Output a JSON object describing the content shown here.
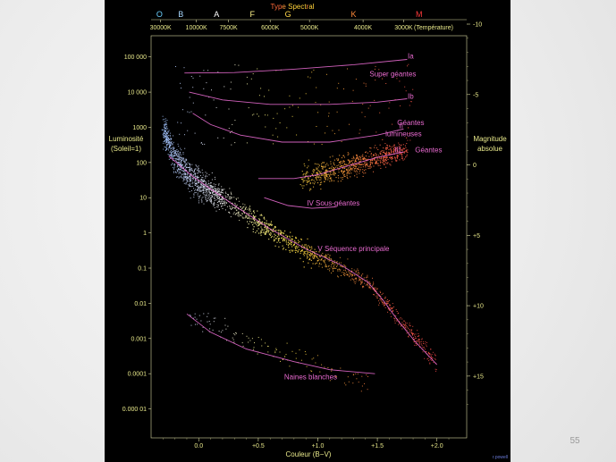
{
  "slide": {
    "number": "55"
  },
  "chart_data": {
    "type": "scatter",
    "title_parts": [
      {
        "text": "Typ",
        "color": "#ff6a3a"
      },
      {
        "text": "e",
        "color": "#ff9a3a"
      },
      {
        "text": " ",
        "color": "#ffffff"
      },
      {
        "text": "Spect",
        "color": "#ffd23a"
      },
      {
        "text": "r",
        "color": "#ff8a3a"
      },
      {
        "text": "al",
        "color": "#ffd23a"
      }
    ],
    "spectral_classes": [
      {
        "label": "O",
        "bv": -0.33,
        "color": "#6ad0ff"
      },
      {
        "label": "B",
        "bv": -0.15,
        "color": "#a8d8ff"
      },
      {
        "label": "A",
        "bv": 0.15,
        "color": "#ffffff"
      },
      {
        "label": "F",
        "bv": 0.45,
        "color": "#fff38a"
      },
      {
        "label": "G",
        "bv": 0.75,
        "color": "#ffd84a"
      },
      {
        "label": "K",
        "bv": 1.3,
        "color": "#ff8a3a"
      },
      {
        "label": "M",
        "bv": 1.85,
        "color": "#ff3a3a"
      }
    ],
    "temperature_ticks": [
      {
        "label": "30000K",
        "bv": -0.32
      },
      {
        "label": "10000K",
        "bv": -0.02
      },
      {
        "label": "7500K",
        "bv": 0.25
      },
      {
        "label": "6000K",
        "bv": 0.6
      },
      {
        "label": "5000K",
        "bv": 0.93
      },
      {
        "label": "4000K",
        "bv": 1.38
      },
      {
        "label": "3000K",
        "bv": 1.72
      }
    ],
    "temperature_axis_label": "(Température)",
    "xlabel": "Couleur (B−V)",
    "x_ticks": [
      {
        "label": "0.0",
        "value": 0.0
      },
      {
        "label": "+0.5",
        "value": 0.5
      },
      {
        "label": "+1.0",
        "value": 1.0
      },
      {
        "label": "+1.5",
        "value": 1.5
      },
      {
        "label": "+2.0",
        "value": 2.0
      }
    ],
    "xlim": [
      -0.4,
      2.25
    ],
    "ylabel_left": [
      "Luminosité",
      "(Soleil=1)"
    ],
    "left_ticks": [
      {
        "label": "100 000",
        "lum": 100000
      },
      {
        "label": "10 000",
        "lum": 10000
      },
      {
        "label": "1000",
        "lum": 1000
      },
      {
        "label": "100",
        "lum": 100
      },
      {
        "label": "10",
        "lum": 10
      },
      {
        "label": "1",
        "lum": 1
      },
      {
        "label": "0.1",
        "lum": 0.1
      },
      {
        "label": "0.01",
        "lum": 0.01
      },
      {
        "label": "0.001",
        "lum": 0.001
      },
      {
        "label": "0.0001",
        "lum": 0.0001
      },
      {
        "label": "0.000 01",
        "lum": 1e-05
      }
    ],
    "luminosity_scale": "log",
    "luminosity_range": [
      1.5e-06,
      400000
    ],
    "ylabel_right": [
      "Magnitude",
      "absolue"
    ],
    "right_ticks": [
      {
        "label": "-10",
        "mag": -10
      },
      {
        "label": "-5",
        "mag": -5
      },
      {
        "label": "0",
        "mag": 0
      },
      {
        "label": "+5",
        "mag": 5
      },
      {
        "label": "+10",
        "mag": 10
      },
      {
        "label": "+15",
        "mag": 15
      }
    ],
    "luminosity_classes": [
      {
        "label": "Ia",
        "color": "#e86ad0",
        "points": [
          [
            -0.12,
            35000
          ],
          [
            0.3,
            36000
          ],
          [
            0.8,
            45000
          ],
          [
            1.3,
            60000
          ],
          [
            1.75,
            85000
          ]
        ]
      },
      {
        "label": "Ib",
        "color": "#e86ad0",
        "points": [
          [
            -0.08,
            10000
          ],
          [
            0.2,
            6000
          ],
          [
            0.6,
            4500
          ],
          [
            1.1,
            4500
          ],
          [
            1.5,
            5200
          ],
          [
            1.75,
            6500
          ]
        ]
      },
      {
        "label": "II",
        "color": "#e86ad0",
        "points": [
          [
            -0.05,
            2500
          ],
          [
            0.1,
            1200
          ],
          [
            0.35,
            600
          ],
          [
            0.7,
            380
          ],
          [
            1.1,
            380
          ],
          [
            1.5,
            600
          ],
          [
            1.72,
            900
          ]
        ]
      },
      {
        "label": "III",
        "color": "#e86ad0",
        "points": [
          [
            0.5,
            35
          ],
          [
            0.8,
            35
          ],
          [
            1.0,
            45
          ],
          [
            1.25,
            80
          ],
          [
            1.5,
            140
          ],
          [
            1.72,
            200
          ]
        ]
      },
      {
        "label": "IV",
        "color": "#e86ad0",
        "points": [
          [
            0.55,
            10
          ],
          [
            0.75,
            6
          ],
          [
            0.95,
            5
          ],
          [
            1.15,
            5.5
          ]
        ]
      },
      {
        "label": "V",
        "color": "#e86ad0",
        "points": [
          [
            -0.25,
            150
          ],
          [
            -0.05,
            40
          ],
          [
            0.3,
            6
          ],
          [
            0.6,
            1.3
          ],
          [
            0.9,
            0.35
          ],
          [
            1.2,
            0.12
          ],
          [
            1.42,
            0.04
          ],
          [
            1.55,
            0.012
          ],
          [
            1.68,
            0.003
          ],
          [
            1.82,
            0.0008
          ],
          [
            2.0,
            0.00018
          ]
        ]
      },
      {
        "label": "Naines blanches",
        "color": "#e86ad0",
        "points": [
          [
            -0.1,
            0.005
          ],
          [
            0.1,
            0.0015
          ],
          [
            0.4,
            0.0005
          ],
          [
            0.8,
            0.00022
          ],
          [
            1.1,
            0.00013
          ],
          [
            1.48,
            0.0001
          ]
        ]
      }
    ],
    "region_labels": [
      {
        "text": "Ia",
        "bv": 1.78,
        "lum": 90000
      },
      {
        "text": "Super géantes",
        "bv": 1.63,
        "lum": 28000
      },
      {
        "text": "Ib",
        "bv": 1.78,
        "lum": 6500
      },
      {
        "text": "II",
        "bv": 1.7,
        "lum": 950
      },
      {
        "text": "Géantes",
        "bv": 1.78,
        "lum": 1150
      },
      {
        "text": "lumineuses",
        "bv": 1.72,
        "lum": 550
      },
      {
        "text": "III",
        "bv": 1.67,
        "lum": 195
      },
      {
        "text": "Géantes",
        "bv": 1.93,
        "lum": 195
      },
      {
        "text": "IV  Sous-géantes",
        "bv": 1.13,
        "lum": 6
      },
      {
        "text": "V  Séquence principale",
        "bv": 1.3,
        "lum": 0.3
      },
      {
        "text": "Naines blanches",
        "bv": 0.94,
        "lum": 7e-05
      }
    ],
    "star_ridge": [
      [
        -0.3,
        900
      ],
      [
        -0.2,
        120
      ],
      [
        0.0,
        25
      ],
      [
        0.3,
        6
      ],
      [
        0.6,
        1.2
      ],
      [
        0.9,
        0.3
      ],
      [
        1.2,
        0.1
      ],
      [
        1.42,
        0.04
      ],
      [
        1.55,
        0.012
      ],
      [
        1.7,
        0.003
      ],
      [
        1.85,
        0.0008
      ],
      [
        2.0,
        0.0002
      ]
    ],
    "giant_clump": {
      "bv": [
        0.85,
        1.75
      ],
      "lum": [
        15,
        300
      ]
    },
    "white_dwarf_band": {
      "bv": [
        -0.1,
        1.45
      ],
      "lum": [
        5e-05,
        0.008
      ]
    },
    "credit": "r.powell"
  }
}
